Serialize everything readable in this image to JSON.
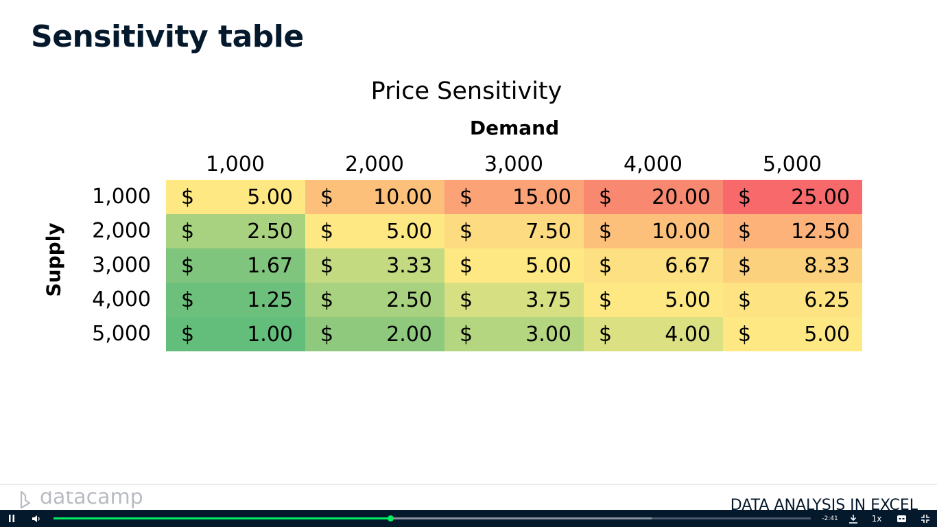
{
  "slide": {
    "title": "Sensitivity table"
  },
  "table": {
    "title": "Price Sensitivity",
    "column_axis_label": "Demand",
    "row_axis_label": "Supply",
    "currency_symbol": "$",
    "columns": [
      "1,000",
      "2,000",
      "3,000",
      "4,000",
      "5,000"
    ],
    "rows": [
      {
        "label": "1,000",
        "values": [
          "5.00",
          "10.00",
          "15.00",
          "20.00",
          "25.00"
        ],
        "colors": [
          "#fde883",
          "#fcc07b",
          "#fba377",
          "#f98871",
          "#f8696b"
        ]
      },
      {
        "label": "2,000",
        "values": [
          "2.50",
          "5.00",
          "7.50",
          "10.00",
          "12.50"
        ],
        "colors": [
          "#a8d27f",
          "#fde883",
          "#fddb80",
          "#fcc07b",
          "#fcb279"
        ]
      },
      {
        "label": "3,000",
        "values": [
          "1.67",
          "3.33",
          "5.00",
          "6.67",
          "8.33"
        ],
        "colors": [
          "#80c57d",
          "#c3da81",
          "#fde883",
          "#fde081",
          "#fcd17e"
        ]
      },
      {
        "label": "4,000",
        "values": [
          "1.25",
          "2.50",
          "3.75",
          "5.00",
          "6.25"
        ],
        "colors": [
          "#6dbf7c",
          "#a8d27f",
          "#d6e082",
          "#fde883",
          "#fde381"
        ]
      },
      {
        "label": "5,000",
        "values": [
          "1.00",
          "2.00",
          "3.00",
          "4.00",
          "5.00"
        ],
        "colors": [
          "#63be7b",
          "#8ec97e",
          "#b5d680",
          "#dbe182",
          "#fde883"
        ]
      }
    ]
  },
  "footer": {
    "logo_text": "datacamp",
    "course_name": "DATA ANALYSIS IN EXCEL"
  },
  "player": {
    "time_remaining": "-2:41",
    "speed": "1x",
    "progress": 0.445,
    "buffered": 0.79,
    "colors": {
      "bar": "#05192d",
      "progress": "#03ef62"
    }
  }
}
